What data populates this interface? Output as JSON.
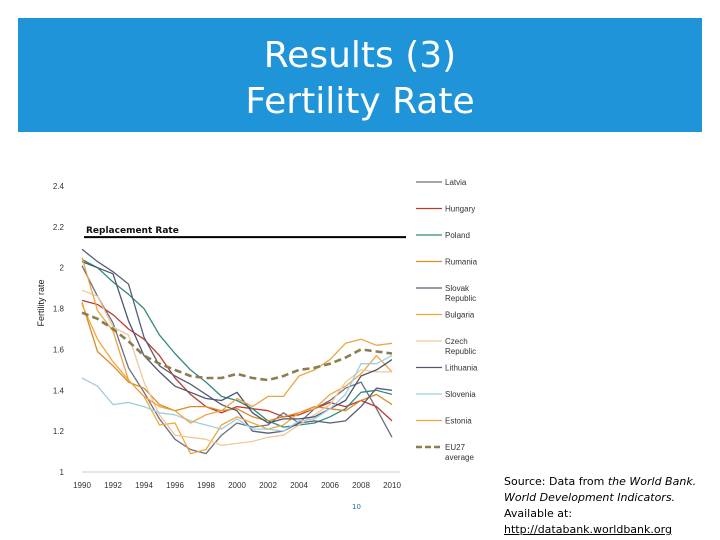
{
  "slide": {
    "title_line1": "Results (3)",
    "title_line2": "Fertility Rate",
    "page_number": "10",
    "source_prefix": "Source: Data from",
    "source_italic1": "the World Bank.",
    "source_italic2": "World Development Indicators.",
    "source_available": "Available at:",
    "source_link": "http://databank.worldbank.org"
  },
  "colors": {
    "banner": "#1f94d8"
  },
  "chart_data": {
    "type": "line",
    "title": "",
    "xlabel": "",
    "ylabel": "Fertility rate",
    "x": [
      1990,
      1991,
      1992,
      1993,
      1994,
      1995,
      1996,
      1997,
      1998,
      1999,
      2000,
      2001,
      2002,
      2003,
      2004,
      2005,
      2006,
      2007,
      2008,
      2009,
      2010
    ],
    "x_ticks": [
      "1990",
      "1992",
      "1994",
      "1996",
      "1998",
      "2000",
      "2002",
      "2004",
      "2006",
      "2008",
      "2010"
    ],
    "ylim": [
      1,
      2.4
    ],
    "y_ticks": [
      "1",
      "1.2",
      "1.4",
      "1.6",
      "1.8",
      "2",
      "2.2",
      "2.4"
    ],
    "reference_line": {
      "label": "Replacement Rate",
      "value": 2.15
    },
    "series": [
      {
        "name": "Latvia",
        "color": "#6a6f82",
        "dash": false,
        "values": [
          2.01,
          1.86,
          1.73,
          1.51,
          1.39,
          1.26,
          1.16,
          1.11,
          1.09,
          1.18,
          1.24,
          1.22,
          1.23,
          1.29,
          1.24,
          1.31,
          1.35,
          1.41,
          1.44,
          1.31,
          1.17
        ]
      },
      {
        "name": "Hungary",
        "color": "#c0392b",
        "dash": false,
        "values": [
          1.84,
          1.82,
          1.77,
          1.7,
          1.65,
          1.57,
          1.46,
          1.38,
          1.32,
          1.29,
          1.32,
          1.31,
          1.3,
          1.27,
          1.28,
          1.31,
          1.34,
          1.32,
          1.35,
          1.32,
          1.25
        ]
      },
      {
        "name": "Poland",
        "color": "#2e8b7a",
        "dash": false,
        "values": [
          2.04,
          2.0,
          1.93,
          1.87,
          1.8,
          1.67,
          1.58,
          1.5,
          1.44,
          1.37,
          1.35,
          1.31,
          1.25,
          1.22,
          1.23,
          1.24,
          1.27,
          1.31,
          1.39,
          1.4,
          1.38
        ]
      },
      {
        "name": "Rumania",
        "color": "#d98b2b",
        "dash": false,
        "values": [
          1.83,
          1.59,
          1.52,
          1.44,
          1.41,
          1.33,
          1.3,
          1.32,
          1.32,
          1.3,
          1.31,
          1.27,
          1.25,
          1.27,
          1.29,
          1.32,
          1.31,
          1.3,
          1.35,
          1.38,
          1.33
        ]
      },
      {
        "name": "Slovak Republic",
        "color": "#585d78",
        "dash": false,
        "values": [
          2.09,
          2.03,
          1.98,
          1.92,
          1.66,
          1.52,
          1.47,
          1.43,
          1.38,
          1.33,
          1.3,
          1.2,
          1.19,
          1.2,
          1.24,
          1.25,
          1.24,
          1.25,
          1.32,
          1.41,
          1.4
        ]
      },
      {
        "name": "Bulgaria",
        "color": "#f2a63c",
        "dash": false,
        "values": [
          1.82,
          1.65,
          1.54,
          1.45,
          1.37,
          1.23,
          1.24,
          1.09,
          1.11,
          1.23,
          1.27,
          1.24,
          1.21,
          1.23,
          1.29,
          1.31,
          1.38,
          1.42,
          1.48,
          1.57,
          1.49
        ]
      },
      {
        "name": "Czech Republic",
        "color": "#f2c79b",
        "dash": false,
        "values": [
          1.89,
          1.86,
          1.71,
          1.67,
          1.44,
          1.28,
          1.18,
          1.17,
          1.16,
          1.13,
          1.14,
          1.15,
          1.17,
          1.18,
          1.23,
          1.28,
          1.33,
          1.44,
          1.5,
          1.49,
          1.49
        ]
      },
      {
        "name": "Lithuania",
        "color": "#4f5570",
        "dash": false,
        "values": [
          2.03,
          2.0,
          1.97,
          1.74,
          1.57,
          1.49,
          1.42,
          1.39,
          1.36,
          1.35,
          1.39,
          1.29,
          1.24,
          1.26,
          1.26,
          1.27,
          1.31,
          1.35,
          1.47,
          1.5,
          1.55
        ]
      },
      {
        "name": "Slovenia",
        "color": "#9fcde4",
        "dash": false,
        "values": [
          1.46,
          1.42,
          1.33,
          1.34,
          1.32,
          1.29,
          1.28,
          1.25,
          1.23,
          1.21,
          1.26,
          1.21,
          1.21,
          1.2,
          1.25,
          1.26,
          1.31,
          1.38,
          1.53,
          1.53,
          1.57
        ]
      },
      {
        "name": "Estonia",
        "color": "#eda343",
        "dash": false,
        "values": [
          2.05,
          1.79,
          1.69,
          1.45,
          1.37,
          1.32,
          1.3,
          1.24,
          1.28,
          1.3,
          1.36,
          1.32,
          1.37,
          1.37,
          1.47,
          1.5,
          1.55,
          1.63,
          1.65,
          1.62,
          1.63
        ]
      },
      {
        "name": "EU27 average",
        "color": "#8a7d52",
        "dash": true,
        "values": [
          1.78,
          1.75,
          1.7,
          1.64,
          1.57,
          1.53,
          1.5,
          1.47,
          1.46,
          1.46,
          1.48,
          1.46,
          1.45,
          1.47,
          1.5,
          1.51,
          1.53,
          1.56,
          1.6,
          1.59,
          1.58
        ]
      }
    ]
  }
}
